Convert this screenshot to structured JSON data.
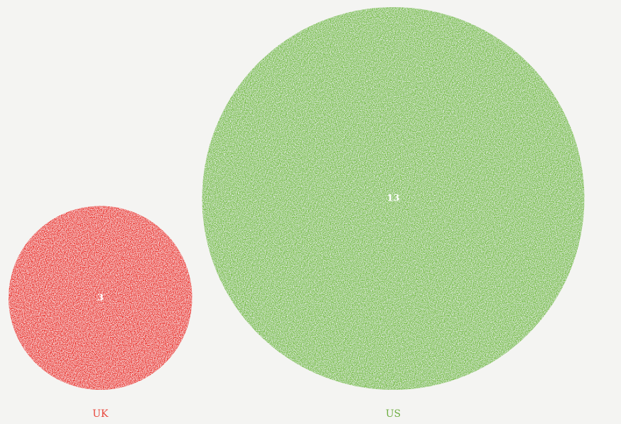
{
  "chart_data": {
    "type": "bubble",
    "title": "",
    "categories": [
      "UK",
      "US"
    ],
    "values": [
      3,
      13
    ],
    "colors": [
      "#ea2a22",
      "#76bd43"
    ],
    "label_colors": [
      "#e8453a",
      "#6fae43"
    ],
    "legend": "none",
    "grid": false
  }
}
